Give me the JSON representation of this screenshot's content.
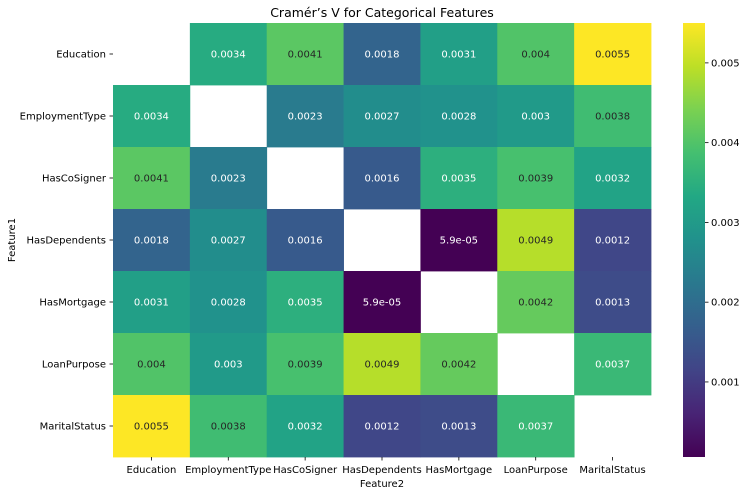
{
  "chart_data": {
    "type": "heatmap",
    "title": "Cramér’s V for Categorical Features",
    "xlabel": "Feature2",
    "ylabel": "Feature1",
    "x_categories": [
      "Education",
      "EmploymentType",
      "HasCoSigner",
      "HasDependents",
      "HasMortgage",
      "LoanPurpose",
      "MaritalStatus"
    ],
    "y_categories": [
      "Education",
      "EmploymentType",
      "HasCoSigner",
      "HasDependents",
      "HasMortgage",
      "LoanPurpose",
      "MaritalStatus"
    ],
    "values": [
      [
        null,
        0.0034,
        0.0041,
        0.0018,
        0.0031,
        0.004,
        0.0055
      ],
      [
        0.0034,
        null,
        0.0023,
        0.0027,
        0.0028,
        0.003,
        0.0038
      ],
      [
        0.0041,
        0.0023,
        null,
        0.0016,
        0.0035,
        0.0039,
        0.0032
      ],
      [
        0.0018,
        0.0027,
        0.0016,
        null,
        5.9e-05,
        0.0049,
        0.0012
      ],
      [
        0.0031,
        0.0028,
        0.0035,
        5.9e-05,
        null,
        0.0042,
        0.0013
      ],
      [
        0.004,
        0.003,
        0.0039,
        0.0049,
        0.0042,
        null,
        0.0037
      ],
      [
        0.0055,
        0.0038,
        0.0032,
        0.0012,
        0.0013,
        0.0037,
        null
      ]
    ],
    "annotations": [
      [
        "",
        "0.0034",
        "0.0041",
        "0.0018",
        "0.0031",
        "0.004",
        "0.0055"
      ],
      [
        "0.0034",
        "",
        "0.0023",
        "0.0027",
        "0.0028",
        "0.003",
        "0.0038"
      ],
      [
        "0.0041",
        "0.0023",
        "",
        "0.0016",
        "0.0035",
        "0.0039",
        "0.0032"
      ],
      [
        "0.0018",
        "0.0027",
        "0.0016",
        "",
        "5.9e-05",
        "0.0049",
        "0.0012"
      ],
      [
        "0.0031",
        "0.0028",
        "0.0035",
        "5.9e-05",
        "",
        "0.0042",
        "0.0013"
      ],
      [
        "0.004",
        "0.003",
        "0.0039",
        "0.0049",
        "0.0042",
        "",
        "0.0037"
      ],
      [
        "0.0055",
        "0.0038",
        "0.0032",
        "0.0012",
        "0.0013",
        "0.0037",
        ""
      ]
    ],
    "colormap": "viridis",
    "color_range": [
      5.9e-05,
      0.0055
    ],
    "colorbar_ticks": [
      0.001,
      0.002,
      0.003,
      0.004,
      0.005
    ],
    "colorbar_tick_labels": [
      "0.001",
      "0.002",
      "0.003",
      "0.004",
      "0.005"
    ],
    "grid": false,
    "colorbar_position": "right"
  }
}
